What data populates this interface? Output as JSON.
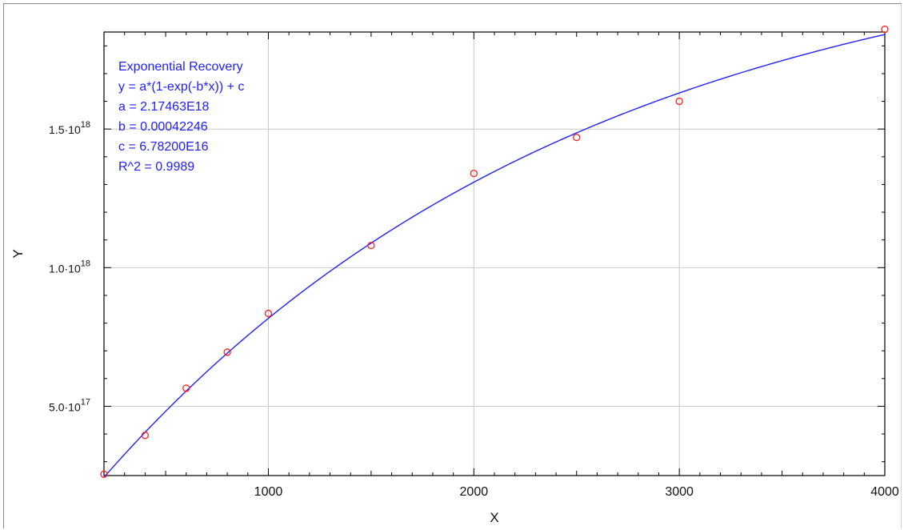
{
  "chart_data": {
    "type": "scatter",
    "xlabel": "X",
    "ylabel": "Y",
    "xlim": [
      200,
      4000
    ],
    "ylim": [
      2.5e+17,
      1.85e+18
    ],
    "x_ticks": [
      {
        "value": 1000,
        "label": "1000"
      },
      {
        "value": 2000,
        "label": "2000"
      },
      {
        "value": 3000,
        "label": "3000"
      },
      {
        "value": 4000,
        "label": "4000"
      }
    ],
    "y_ticks": [
      {
        "value": 5e+17,
        "mantissa": "5.0·10",
        "exp": "17"
      },
      {
        "value": 1e+18,
        "mantissa": "1.0·10",
        "exp": "18"
      },
      {
        "value": 1.5e+18,
        "mantissa": "1.5·10",
        "exp": "18"
      }
    ],
    "grid": true,
    "series": [
      {
        "kind": "points",
        "marker": "open-circle",
        "color": "#ff2020",
        "x": [
          200,
          400,
          600,
          800,
          1000,
          1500,
          2000,
          2500,
          3000,
          4000
        ],
        "y": [
          2.55e+17,
          3.95e+17,
          5.65e+17,
          6.95e+17,
          8.35e+17,
          1.08e+18,
          1.34e+18,
          1.47e+18,
          1.6e+18,
          1.86e+18
        ]
      },
      {
        "kind": "fit-curve",
        "color": "#2020ff",
        "model": "exponential-recovery",
        "params": {
          "a": 2.17463e+18,
          "b": 0.00042246,
          "c": 6.782e+16
        }
      }
    ],
    "annotation": {
      "color": "#2020ff",
      "lines": [
        "Exponential Recovery",
        "y = a*(1-exp(-b*x)) + c",
        "a = 2.17463E18",
        "b = 0.00042246",
        "c = 6.78200E16",
        "R^2 = 0.9989"
      ]
    }
  }
}
